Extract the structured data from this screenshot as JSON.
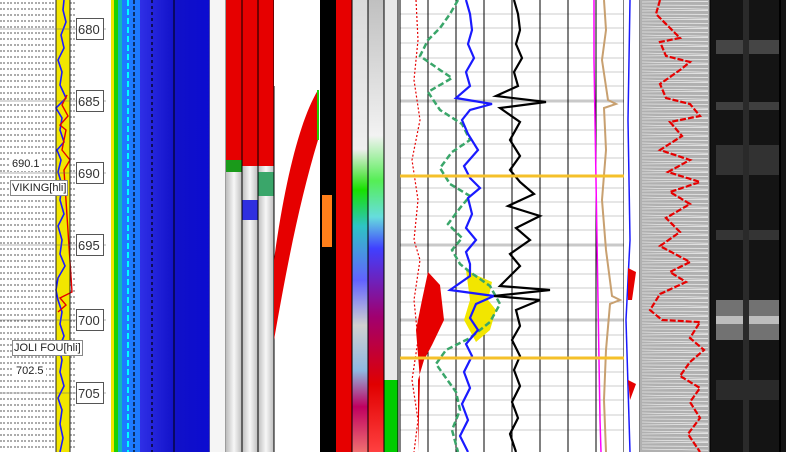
{
  "depth_track": {
    "depth_labels": [
      "680",
      "685",
      "690",
      "695",
      "700",
      "705"
    ],
    "formation_tops": [
      {
        "depth_text": "690.1",
        "name": "VIKING[hli]"
      },
      {
        "depth_text": "702.5",
        "name": "JOLI FOU[hli]"
      }
    ]
  },
  "colors": {
    "lithology_fill": "#f2e600",
    "gr_curve": "#1a1aff",
    "neutron_curve": "#3aa66a",
    "resistivity_curve": "#000000",
    "pef_curve": "#ff00ff",
    "caliper_curve": "#c8a070",
    "top_marker_line": "#f5c02a",
    "red_fill": "#e60000",
    "image_background": "#141414"
  },
  "icons": {
    "shale_pattern": "dash-hatch-pattern",
    "sand_fill": "yellow-fill-pattern"
  }
}
